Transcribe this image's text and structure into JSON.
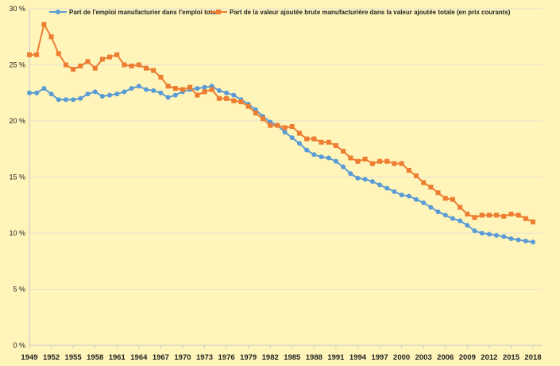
{
  "chart_data": {
    "type": "line",
    "title": "",
    "xlabel": "",
    "ylabel": "",
    "ylim": [
      0,
      30
    ],
    "yticks": [
      "0 %",
      "5 %",
      "10 %",
      "15 %",
      "20 %",
      "25 %",
      "30 %"
    ],
    "ytick_values": [
      0,
      5,
      10,
      15,
      20,
      25,
      30
    ],
    "xlim": [
      1949,
      2018
    ],
    "xticks": [
      "1949",
      "1952",
      "1955",
      "1958",
      "1961",
      "1964",
      "1967",
      "1970",
      "1973",
      "1976",
      "1979",
      "1982",
      "1985",
      "1988",
      "1991",
      "1994",
      "1997",
      "2000",
      "2003",
      "2006",
      "2009",
      "2012",
      "2015",
      "2018"
    ],
    "grid": true,
    "legend_position": "top",
    "x_start": 1949,
    "series": [
      {
        "name": "Part de l'emploi manufacturier dans l'emploi total",
        "color": "#5B9BD5",
        "marker": "circle",
        "values": [
          22.5,
          22.5,
          22.9,
          22.4,
          21.9,
          21.9,
          21.9,
          22.0,
          22.4,
          22.6,
          22.2,
          22.3,
          22.4,
          22.6,
          22.9,
          23.1,
          22.8,
          22.7,
          22.5,
          22.1,
          22.3,
          22.6,
          22.8,
          22.9,
          23.0,
          23.1,
          22.7,
          22.5,
          22.3,
          21.9,
          21.5,
          21.0,
          20.4,
          19.9,
          19.6,
          19.0,
          18.5,
          18.0,
          17.4,
          17.0,
          16.8,
          16.7,
          16.4,
          15.9,
          15.3,
          14.9,
          14.8,
          14.6,
          14.3,
          14.0,
          13.7,
          13.4,
          13.3,
          13.0,
          12.7,
          12.3,
          11.9,
          11.6,
          11.3,
          11.1,
          10.7,
          10.2,
          10.0,
          9.9,
          9.8,
          9.7,
          9.5,
          9.4,
          9.3,
          9.2
        ]
      },
      {
        "name": "Part de la valeur ajoutée brute manufacturière dans la valeur ajoutée totale (en prix courants)",
        "color": "#ED7D31",
        "marker": "square",
        "values": [
          25.9,
          25.9,
          28.6,
          27.5,
          26.0,
          25.0,
          24.6,
          24.9,
          25.3,
          24.7,
          25.5,
          25.7,
          25.9,
          25.0,
          24.9,
          25.0,
          24.7,
          24.5,
          23.9,
          23.1,
          22.9,
          22.8,
          23.0,
          22.3,
          22.6,
          22.8,
          22.0,
          22.0,
          21.8,
          21.7,
          21.3,
          20.7,
          20.2,
          19.6,
          19.6,
          19.4,
          19.5,
          18.9,
          18.4,
          18.4,
          18.1,
          18.1,
          17.8,
          17.3,
          16.7,
          16.4,
          16.6,
          16.2,
          16.4,
          16.4,
          16.2,
          16.2,
          15.6,
          15.1,
          14.5,
          14.1,
          13.6,
          13.1,
          13.0,
          12.3,
          11.7,
          11.4,
          11.6,
          11.6,
          11.6,
          11.5,
          11.7,
          11.6,
          11.3,
          11.0
        ]
      }
    ]
  }
}
